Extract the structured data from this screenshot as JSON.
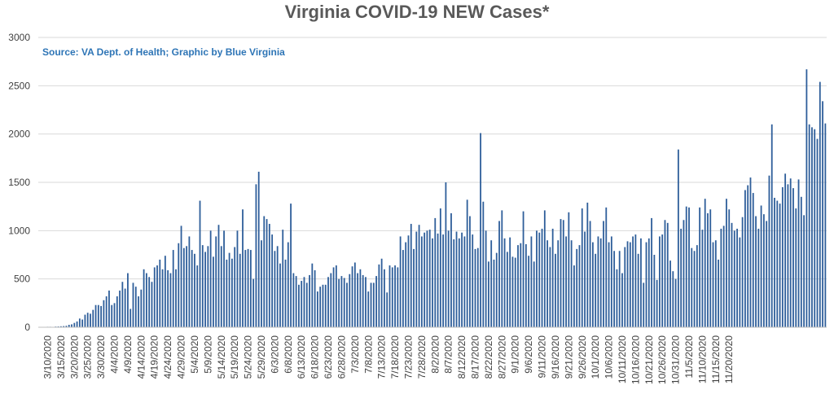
{
  "chart_data": {
    "type": "bar",
    "title": "Virginia COVID-19 NEW Cases*",
    "subtitle": "Source: VA Dept. of Health; Graphic by Blue Virginia",
    "start_date": "3/7/2020",
    "ylim": [
      0,
      3000
    ],
    "yticks": [
      0,
      500,
      1000,
      1500,
      2000,
      2500,
      3000
    ],
    "grid": true,
    "xtick_labels": [
      "3/10/2020",
      "3/15/2020",
      "3/20/2020",
      "3/25/2020",
      "3/30/2020",
      "4/4/2020",
      "4/9/2020",
      "4/14/2020",
      "4/19/2020",
      "4/24/2020",
      "4/29/2020",
      "5/4/2020",
      "5/9/2020",
      "5/14/2020",
      "5/19/2020",
      "5/24/2020",
      "5/29/2020",
      "6/3/2020",
      "6/8/2020",
      "6/13/2020",
      "6/18/2020",
      "6/23/2020",
      "6/28/2020",
      "7/3/2020",
      "7/8/2020",
      "7/13/2020",
      "7/18/2020",
      "7/23/2020",
      "7/28/2020",
      "8/2/2020",
      "8/7/2020",
      "8/12/2020",
      "8/17/2020",
      "8/22/2020",
      "8/27/2020",
      "9/1/2020",
      "9/6/2020",
      "9/11/2020",
      "9/16/2020",
      "9/21/2020",
      "9/26/2020",
      "10/1/2020",
      "10/6/2020",
      "10/11/2020",
      "10/16/2020",
      "10/21/2020",
      "10/26/2020",
      "10/31/2020",
      "11/5/2020",
      "11/10/2020",
      "11/15/2020",
      "11/20/2020"
    ],
    "values": [
      2,
      2,
      2,
      5,
      5,
      4,
      7,
      8,
      10,
      12,
      15,
      25,
      30,
      45,
      60,
      90,
      80,
      130,
      150,
      140,
      180,
      230,
      230,
      220,
      280,
      320,
      380,
      230,
      250,
      320,
      380,
      470,
      400,
      560,
      190,
      460,
      420,
      320,
      390,
      600,
      560,
      520,
      470,
      620,
      640,
      700,
      600,
      740,
      590,
      560,
      800,
      600,
      870,
      1050,
      820,
      840,
      940,
      800,
      760,
      640,
      1310,
      850,
      780,
      840,
      1000,
      730,
      940,
      1060,
      840,
      1000,
      700,
      770,
      710,
      830,
      1000,
      760,
      1220,
      800,
      810,
      800,
      500,
      1480,
      1610,
      900,
      1150,
      1120,
      1070,
      960,
      790,
      840,
      660,
      1010,
      700,
      880,
      1280,
      560,
      530,
      440,
      480,
      520,
      460,
      540,
      660,
      590,
      370,
      420,
      440,
      440,
      520,
      560,
      620,
      640,
      500,
      530,
      510,
      460,
      550,
      630,
      670,
      560,
      600,
      540,
      520,
      370,
      460,
      460,
      530,
      650,
      710,
      600,
      360,
      640,
      620,
      640,
      620,
      940,
      800,
      880,
      950,
      1070,
      810,
      990,
      1060,
      940,
      980,
      1000,
      1010,
      920,
      1130,
      970,
      1230,
      960,
      1500,
      1000,
      1180,
      910,
      990,
      920,
      980,
      940,
      1320,
      1150,
      960,
      810,
      820,
      2010,
      1300,
      1000,
      680,
      900,
      700,
      770,
      1100,
      1210,
      920,
      780,
      930,
      730,
      720,
      850,
      870,
      1200,
      860,
      740,
      940,
      680,
      1000,
      980,
      1020,
      1210,
      900,
      830,
      1020,
      760,
      900,
      1120,
      1110,
      940,
      1190,
      900,
      640,
      810,
      850,
      1230,
      990,
      1290,
      1100,
      880,
      760,
      940,
      920,
      1100,
      1240,
      880,
      940,
      790,
      600,
      790,
      560,
      830,
      890,
      880,
      940,
      960,
      760,
      920,
      460,
      880,
      920,
      1130,
      750,
      490,
      940,
      960,
      1110,
      1080,
      690,
      580,
      500,
      1840,
      1020,
      1110,
      1250,
      1240,
      820,
      790,
      850,
      1240,
      1010,
      1330,
      1180,
      1220,
      880,
      900,
      700,
      1020,
      1050,
      1330,
      1220,
      1080,
      1000,
      1020,
      930,
      1140,
      1420,
      1470,
      1550,
      1390,
      1150,
      1020,
      1260,
      1170,
      1100,
      1570,
      2100,
      1340,
      1310,
      1280,
      1450,
      1590,
      1480,
      1540,
      1440,
      1230,
      1530,
      1350,
      1160,
      2670,
      2100,
      2070,
      2050,
      1950,
      2540,
      2340,
      2110
    ]
  }
}
